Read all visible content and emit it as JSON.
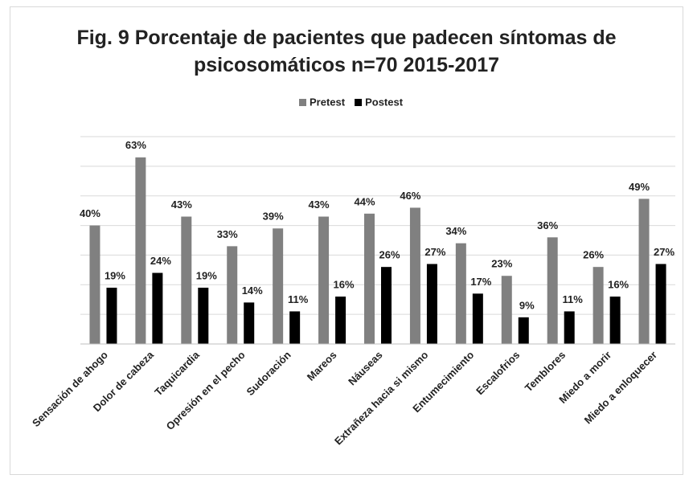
{
  "chart_data": {
    "type": "bar",
    "title": "Fig. 9 Porcentaje de pacientes que padecen síntomas de psicosomáticos n=70  2015-2017",
    "categories": [
      "Sensación de ahogo",
      "Dolor de cabeza",
      "Taquicardia",
      "Opresión en el pecho",
      "Sudoración",
      "Mareos",
      "Náuseas",
      "Extrañeza hacia si mismo",
      "Entumecimiento",
      "Escalofrios",
      "Temblores",
      "Miedo a morir",
      "Miedo a enloquecer"
    ],
    "series": [
      {
        "name": "Pretest",
        "color": "#808080",
        "values": [
          40,
          63,
          43,
          33,
          39,
          43,
          44,
          46,
          34,
          23,
          36,
          26,
          49
        ],
        "value_labels": [
          "40%",
          "63%",
          "43%",
          "33%",
          "39%",
          "43%",
          "44%",
          "46%",
          "34%",
          "23%",
          "36%",
          "26%",
          "49%"
        ]
      },
      {
        "name": "Postest",
        "color": "#000000",
        "values": [
          19,
          24,
          19,
          14,
          11,
          16,
          26,
          27,
          17,
          9,
          11,
          16,
          27
        ],
        "value_labels": [
          "19%",
          "24%",
          "19%",
          "14%",
          "11%",
          "16%",
          "26%",
          "27%",
          "17%",
          "9%",
          "11%",
          "16%",
          "27%"
        ]
      }
    ],
    "ylim": [
      0,
      70
    ],
    "yticks": [
      0,
      10,
      20,
      30,
      40,
      50,
      60,
      70
    ],
    "grid": true,
    "legend": "top"
  }
}
